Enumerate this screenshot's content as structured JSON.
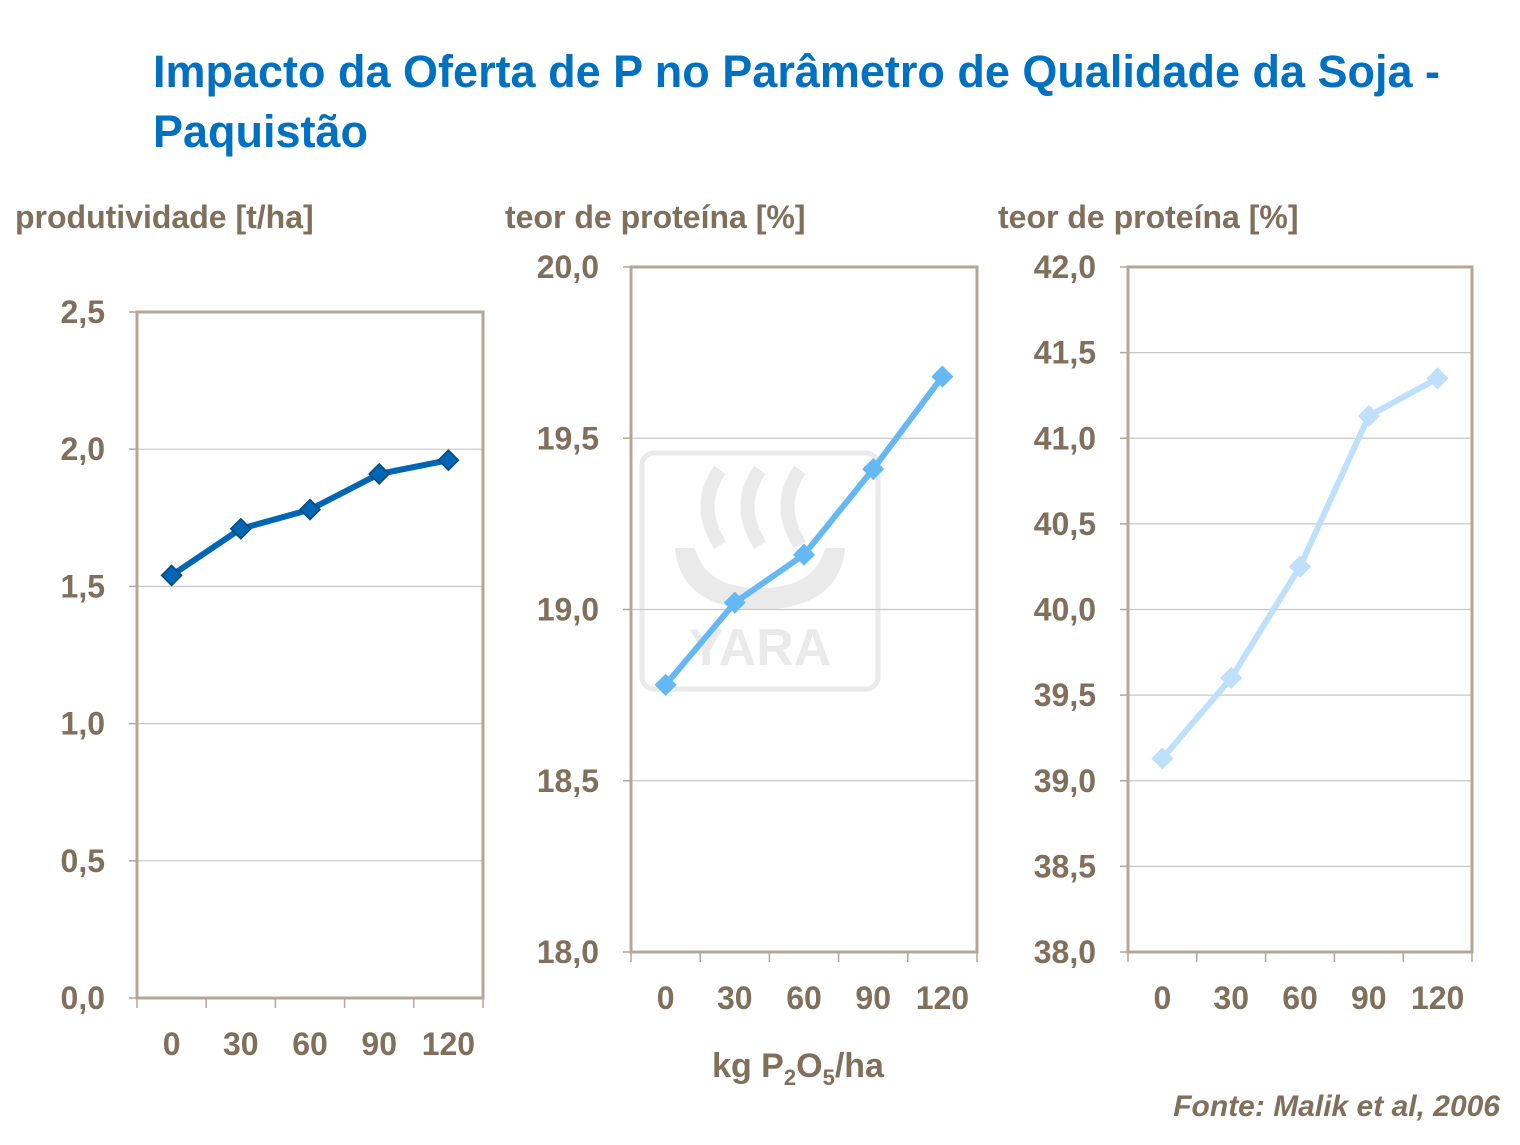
{
  "title": "Impacto da Oferta de P no Parâmetro de Qualidade da Soja - Paquistão",
  "source": "Fonte: Malik et al, 2006",
  "watermark_logo_text": "YARA",
  "x_axis_label": {
    "pre": "kg P",
    "sub1": "2",
    "mid": "O",
    "sub2": "5",
    "post": "/ha"
  },
  "colors": {
    "title": "#0070C0",
    "text": "#7F6F5B",
    "frame": "#B3A797",
    "grid": "#C8C8C8"
  },
  "chart_data": [
    {
      "type": "line",
      "ylabel": "produtividade [t/ha]",
      "categories": [
        "0",
        "30",
        "60",
        "90",
        "120"
      ],
      "values": [
        1.54,
        1.71,
        1.78,
        1.91,
        1.96
      ],
      "ylim": [
        0,
        2.5
      ],
      "yticks": [
        "0,0",
        "0,5",
        "1,0",
        "1,5",
        "2,0",
        "2,5"
      ],
      "color": "#0066B3",
      "marker": "diamond",
      "grid": true
    },
    {
      "type": "line",
      "ylabel": "teor de proteína [%]",
      "categories": [
        "0",
        "30",
        "60",
        "90",
        "120"
      ],
      "values": [
        18.78,
        19.02,
        19.16,
        19.41,
        19.68
      ],
      "ylim": [
        18,
        20
      ],
      "yticks": [
        "18,0",
        "18,5",
        "19,0",
        "19,5",
        "20,0"
      ],
      "color": "#66B8F5",
      "marker": "diamond",
      "grid": true
    },
    {
      "type": "line",
      "ylabel": "teor de proteína [%]",
      "categories": [
        "0",
        "30",
        "60",
        "90",
        "120"
      ],
      "values": [
        39.13,
        39.6,
        40.25,
        41.13,
        41.35
      ],
      "ylim": [
        38,
        42
      ],
      "yticks": [
        "38,0",
        "38,5",
        "39,0",
        "39,5",
        "40,0",
        "40,5",
        "41,0",
        "41,5",
        "42,0"
      ],
      "color": "#BEE0FA",
      "marker": "diamond",
      "grid": true
    }
  ]
}
